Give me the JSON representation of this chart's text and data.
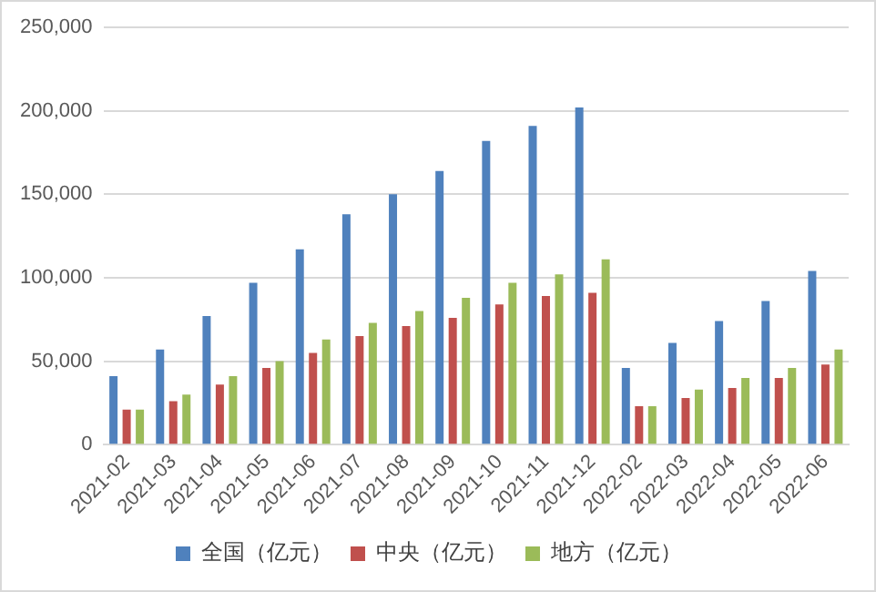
{
  "chart_data": {
    "type": "bar",
    "categories": [
      "2021-02",
      "2021-03",
      "2021-04",
      "2021-05",
      "2021-06",
      "2021-07",
      "2021-08",
      "2021-09",
      "2021-10",
      "2021-11",
      "2021-12",
      "2022-02",
      "2022-03",
      "2022-04",
      "2022-05",
      "2022-06"
    ],
    "series": [
      {
        "name": "全国（亿元）",
        "color": "#4f81bd",
        "values": [
          41000,
          57000,
          77000,
          97000,
          117000,
          138000,
          150000,
          164000,
          182000,
          191000,
          202000,
          46000,
          61000,
          74000,
          86000,
          104000
        ]
      },
      {
        "name": "中央（亿元）",
        "color": "#c0504d",
        "values": [
          21000,
          26000,
          36000,
          46000,
          55000,
          65000,
          71000,
          76000,
          84000,
          89000,
          91000,
          23000,
          28000,
          34000,
          40000,
          48000
        ]
      },
      {
        "name": "地方（亿元）",
        "color": "#9bbb59",
        "values": [
          21000,
          30000,
          41000,
          50000,
          63000,
          73000,
          80000,
          88000,
          97000,
          102000,
          111000,
          23000,
          33000,
          40000,
          46000,
          57000
        ]
      }
    ],
    "ylim": [
      0,
      250000
    ],
    "yticks": [
      0,
      {
        "value": 50000,
        "label": "50,000"
      },
      {
        "value": 100000,
        "label": "100,000"
      },
      {
        "value": 150000,
        "label": "150,000"
      },
      {
        "value": 200000,
        "label": "200,000"
      },
      {
        "value": 250000,
        "label": "250,000"
      }
    ],
    "grid": "y",
    "legend": "bottom"
  }
}
